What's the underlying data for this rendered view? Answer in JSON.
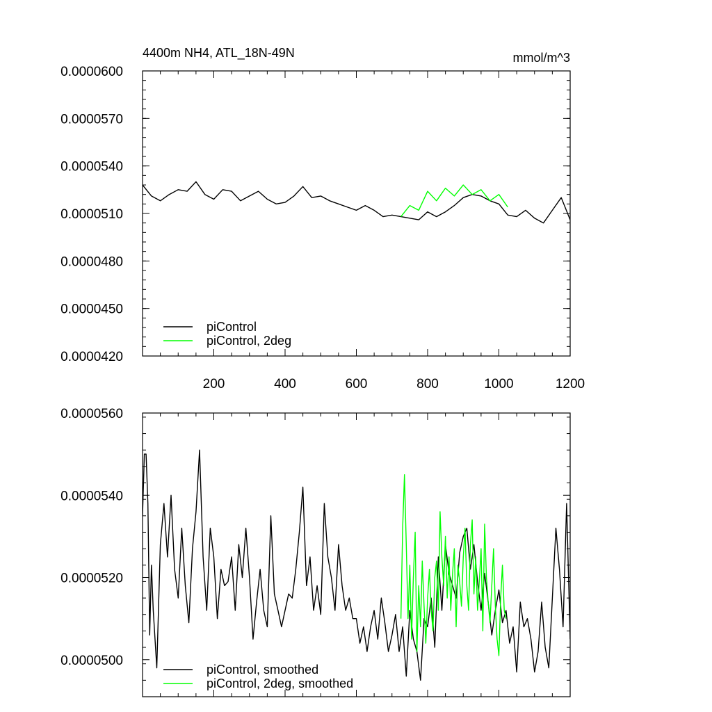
{
  "chart_data": [
    {
      "type": "line",
      "title": "4400m NH4, ATL_18N-49N",
      "units_label": "mmol/m^3",
      "xlabel": "",
      "ylabel": "",
      "xlim": [
        0,
        1200
      ],
      "ylim": [
        4.2e-05,
        6e-05
      ],
      "x_ticks": [
        200,
        400,
        600,
        800,
        1000,
        1200
      ],
      "x_tick_labels": [
        "200",
        "400",
        "600",
        "800",
        "1000",
        "1200"
      ],
      "y_ticks": [
        4.2e-05,
        4.5e-05,
        4.8e-05,
        5.1e-05,
        5.4e-05,
        5.7e-05,
        6e-05
      ],
      "y_tick_labels": [
        "0.0000420",
        "0.0000450",
        "0.0000480",
        "0.0000510",
        "0.0000540",
        "0.0000570",
        "0.0000600"
      ],
      "grid": false,
      "legend_position": "bottom-left",
      "series": [
        {
          "name": "piControl",
          "color": "#000000",
          "x": [
            0,
            25,
            50,
            75,
            100,
            125,
            150,
            175,
            200,
            225,
            250,
            275,
            300,
            325,
            350,
            375,
            400,
            425,
            450,
            475,
            500,
            525,
            550,
            575,
            600,
            625,
            650,
            675,
            700,
            725,
            750,
            775,
            800,
            825,
            850,
            875,
            900,
            925,
            950,
            975,
            1000,
            1025,
            1050,
            1075,
            1100,
            1125,
            1150,
            1175,
            1200
          ],
          "y": [
            5.28e-05,
            5.21e-05,
            5.18e-05,
            5.22e-05,
            5.25e-05,
            5.24e-05,
            5.3e-05,
            5.22e-05,
            5.19e-05,
            5.25e-05,
            5.24e-05,
            5.18e-05,
            5.21e-05,
            5.24e-05,
            5.19e-05,
            5.16e-05,
            5.17e-05,
            5.21e-05,
            5.27e-05,
            5.2e-05,
            5.21e-05,
            5.18e-05,
            5.16e-05,
            5.14e-05,
            5.12e-05,
            5.15e-05,
            5.12e-05,
            5.08e-05,
            5.09e-05,
            5.08e-05,
            5.07e-05,
            5.06e-05,
            5.11e-05,
            5.08e-05,
            5.11e-05,
            5.15e-05,
            5.2e-05,
            5.22e-05,
            5.21e-05,
            5.18e-05,
            5.16e-05,
            5.09e-05,
            5.08e-05,
            5.12e-05,
            5.07e-05,
            5.04e-05,
            5.12e-05,
            5.2e-05,
            5.06e-05
          ]
        },
        {
          "name": "piControl, 2deg",
          "color": "#00ff00",
          "x": [
            725,
            750,
            775,
            800,
            825,
            850,
            875,
            900,
            925,
            950,
            975,
            1000,
            1025
          ],
          "y": [
            5.08e-05,
            5.15e-05,
            5.12e-05,
            5.24e-05,
            5.18e-05,
            5.26e-05,
            5.21e-05,
            5.28e-05,
            5.22e-05,
            5.25e-05,
            5.18e-05,
            5.22e-05,
            5.14e-05
          ]
        }
      ]
    },
    {
      "type": "line",
      "title": "",
      "xlabel": "",
      "ylabel": "",
      "xlim": [
        0,
        1200
      ],
      "ylim": [
        4.91e-05,
        5.6e-05
      ],
      "x_ticks": [
        200,
        400,
        600,
        800,
        1000,
        1200
      ],
      "y_ticks": [
        5e-05,
        5.2e-05,
        5.4e-05,
        5.6e-05
      ],
      "y_tick_labels": [
        "0.0000500",
        "0.0000520",
        "0.0000540",
        "0.0000560"
      ],
      "grid": false,
      "legend_position": "bottom-left",
      "series": [
        {
          "name": "piControl, smoothed",
          "color": "#000000",
          "x": [
            0,
            5,
            10,
            15,
            20,
            25,
            30,
            40,
            50,
            60,
            70,
            80,
            90,
            100,
            110,
            120,
            130,
            140,
            150,
            160,
            170,
            180,
            190,
            200,
            210,
            220,
            230,
            240,
            250,
            260,
            270,
            280,
            290,
            300,
            310,
            320,
            330,
            340,
            350,
            360,
            370,
            380,
            390,
            400,
            410,
            420,
            430,
            440,
            450,
            460,
            470,
            480,
            490,
            500,
            510,
            520,
            530,
            540,
            550,
            560,
            570,
            580,
            590,
            600,
            610,
            620,
            630,
            640,
            650,
            660,
            670,
            680,
            690,
            700,
            710,
            720,
            730,
            740,
            750,
            760,
            770,
            780,
            790,
            800,
            810,
            820,
            830,
            840,
            850,
            860,
            870,
            880,
            890,
            900,
            910,
            920,
            930,
            940,
            950,
            960,
            970,
            980,
            990,
            1000,
            1010,
            1020,
            1030,
            1040,
            1050,
            1060,
            1070,
            1080,
            1090,
            1100,
            1110,
            1120,
            1130,
            1140,
            1150,
            1160,
            1170,
            1180,
            1190,
            1200
          ],
          "y": [
            5.35e-05,
            5.5e-05,
            5.5e-05,
            5.38e-05,
            5.06e-05,
            5.23e-05,
            5.12e-05,
            4.98e-05,
            5.28e-05,
            5.38e-05,
            5.25e-05,
            5.4e-05,
            5.22e-05,
            5.15e-05,
            5.32e-05,
            5.18e-05,
            5.09e-05,
            5.27e-05,
            5.36e-05,
            5.51e-05,
            5.25e-05,
            5.12e-05,
            5.32e-05,
            5.25e-05,
            5.1e-05,
            5.22e-05,
            5.18e-05,
            5.19e-05,
            5.25e-05,
            5.12e-05,
            5.28e-05,
            5.2e-05,
            5.32e-05,
            5.2e-05,
            5.05e-05,
            5.14e-05,
            5.22e-05,
            5.12e-05,
            5.08e-05,
            5.35e-05,
            5.16e-05,
            5.12e-05,
            5.08e-05,
            5.12e-05,
            5.16e-05,
            5.15e-05,
            5.22e-05,
            5.31e-05,
            5.42e-05,
            5.18e-05,
            5.25e-05,
            5.12e-05,
            5.18e-05,
            5.11e-05,
            5.38e-05,
            5.25e-05,
            5.2e-05,
            5.12e-05,
            5.28e-05,
            5.18e-05,
            5.12e-05,
            5.15e-05,
            5.1e-05,
            5.1e-05,
            5.04e-05,
            5.08e-05,
            5.02e-05,
            5.08e-05,
            5.12e-05,
            5.05e-05,
            5.15e-05,
            5.09e-05,
            5.02e-05,
            5.06e-05,
            5.11e-05,
            5.02e-05,
            5.08e-05,
            4.96e-05,
            5.12e-05,
            5.05e-05,
            5.02e-05,
            4.95e-05,
            5.1e-05,
            5.08e-05,
            5.15e-05,
            5.03e-05,
            5.25e-05,
            5.12e-05,
            5.28e-05,
            5.21e-05,
            5.18e-05,
            5.15e-05,
            5.26e-05,
            5.3e-05,
            5.32e-05,
            5.22e-05,
            5.28e-05,
            5.19e-05,
            5.12e-05,
            5.21e-05,
            5.14e-05,
            5.06e-05,
            5.12e-05,
            5.17e-05,
            5.09e-05,
            5.12e-05,
            5.04e-05,
            5.08e-05,
            4.97e-05,
            5.14e-05,
            5.08e-05,
            5.1e-05,
            5.05e-05,
            4.97e-05,
            5.02e-05,
            5.14e-05,
            5.03e-05,
            4.98e-05,
            5.15e-05,
            5.32e-05,
            5.22e-05,
            5.08e-05,
            5.38e-05,
            5.05e-05
          ]
        },
        {
          "name": "piControl, 2deg, smoothed",
          "color": "#00ff00",
          "x": [
            725,
            730,
            735,
            740,
            745,
            750,
            755,
            760,
            765,
            770,
            775,
            780,
            785,
            790,
            795,
            800,
            805,
            810,
            815,
            820,
            825,
            830,
            835,
            840,
            845,
            850,
            855,
            860,
            865,
            870,
            875,
            880,
            885,
            890,
            895,
            900,
            905,
            910,
            915,
            920,
            925,
            930,
            935,
            940,
            945,
            950,
            955,
            960,
            965,
            970,
            975,
            980,
            985,
            990,
            995,
            1000,
            1005,
            1010,
            1015,
            1020
          ],
          "y": [
            5.1e-05,
            5.32e-05,
            5.45e-05,
            5.28e-05,
            5.1e-05,
            5.23e-05,
            5.05e-05,
            5.2e-05,
            5.31e-05,
            5.02e-05,
            5.18e-05,
            5.08e-05,
            5.24e-05,
            5.13e-05,
            5.04e-05,
            5.15e-05,
            5.22e-05,
            5.12e-05,
            5.07e-05,
            5.2e-05,
            5.24e-05,
            5.12e-05,
            5.36e-05,
            5.25e-05,
            5.18e-05,
            5.3e-05,
            5.15e-05,
            5.25e-05,
            5.12e-05,
            5.21e-05,
            5.27e-05,
            5.08e-05,
            5.23e-05,
            5.19e-05,
            5.13e-05,
            5.25e-05,
            5.32e-05,
            5.18e-05,
            5.12e-05,
            5.28e-05,
            5.34e-05,
            5.16e-05,
            5.25e-05,
            5.12e-05,
            5.19e-05,
            5.27e-05,
            5.07e-05,
            5.33e-05,
            5.2e-05,
            5.14e-05,
            5.09e-05,
            5.18e-05,
            5.27e-05,
            5.13e-05,
            5.05e-05,
            5.01e-05,
            5.15e-05,
            5.23e-05,
            5.12e-05,
            5.1e-05
          ]
        }
      ]
    }
  ]
}
